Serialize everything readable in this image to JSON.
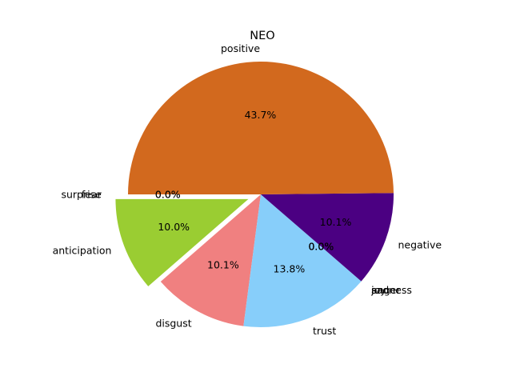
{
  "chart_data": {
    "type": "pie",
    "title": "NEO",
    "start_angle": 180,
    "direction": "counterclockwise",
    "slices": [
      {
        "label": "fear",
        "value": 0.0,
        "pct_text": "0.0%",
        "color": "#ffd700",
        "explode": 0.1
      },
      {
        "label": "anticipation",
        "value": 10.0,
        "pct_text": "10.0%",
        "color": "#9acd32",
        "explode": 0.1
      },
      {
        "label": "disgust",
        "value": 10.1,
        "pct_text": "10.1%",
        "color": "#f08080",
        "explode": 0.0
      },
      {
        "label": "trust",
        "value": 13.8,
        "pct_text": "13.8%",
        "color": "#87cefa",
        "explode": 0.0
      },
      {
        "label": "sadness",
        "value": 0.0,
        "pct_text": "0.0%",
        "color": "#808080",
        "explode": 0.0
      },
      {
        "label": "anger",
        "value": 0.0,
        "pct_text": "0.0%",
        "color": "#ff0000",
        "explode": 0.0
      },
      {
        "label": "joy",
        "value": 0.0,
        "pct_text": "0.0%",
        "color": "#ffa500",
        "explode": 0.0
      },
      {
        "label": "negative",
        "value": 10.1,
        "pct_text": "10.1%",
        "color": "#4b0082",
        "explode": 0.0
      },
      {
        "label": "positive",
        "value": 43.7,
        "pct_text": "43.7%",
        "color": "#d2691e",
        "explode": 0.0
      },
      {
        "label": "surprise",
        "value": 0.0,
        "pct_text": "0.0%",
        "color": "#ff8c00",
        "explode": 0.1
      }
    ]
  }
}
